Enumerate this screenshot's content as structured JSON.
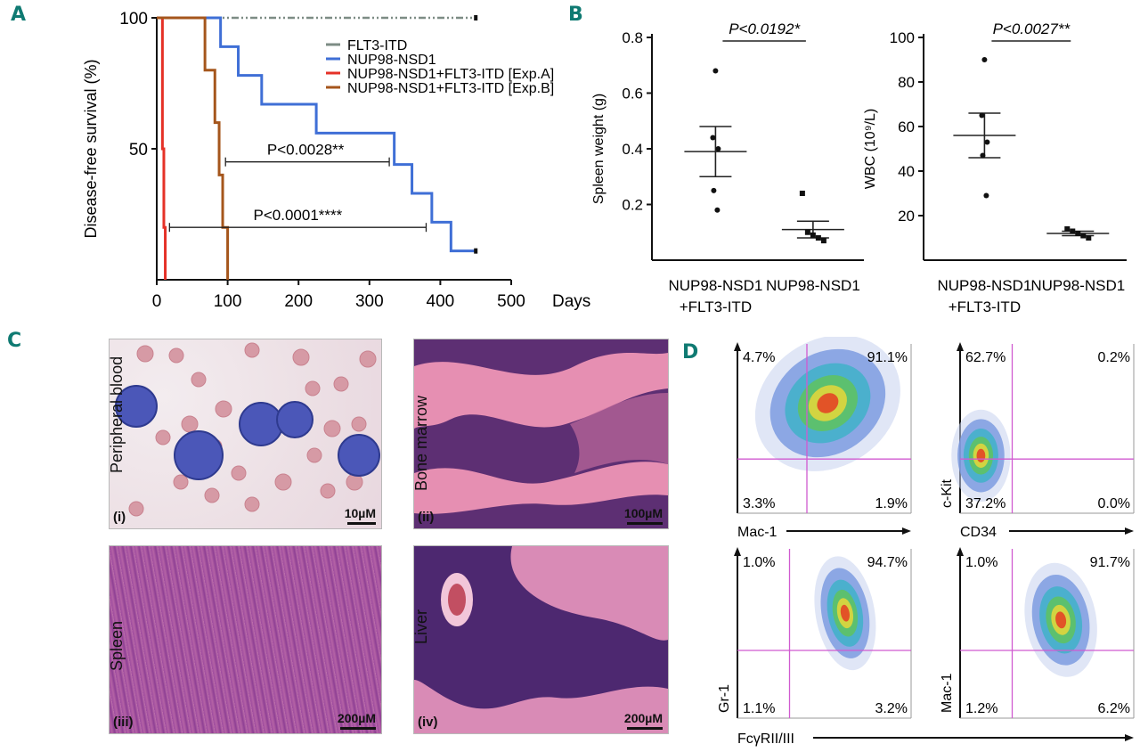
{
  "panels": {
    "a": {
      "letter": "A"
    },
    "b": {
      "letter": "B"
    },
    "c": {
      "letter": "C"
    },
    "d": {
      "letter": "D"
    }
  },
  "colors": {
    "panel_letter": "#0f7a72",
    "flt3": "#7d8c85",
    "nup98": "#3f6fd6",
    "expA": "#e53127",
    "expB": "#a5561c",
    "gate": "#d05ad0"
  },
  "chart_data": [
    {
      "type": "line",
      "panel": "A",
      "ylabel": "Disease-free survival (%)",
      "xlabel": "Days",
      "xlim": [
        0,
        500
      ],
      "ylim": [
        0,
        100
      ],
      "xticks": [
        0,
        100,
        200,
        300,
        400,
        500
      ],
      "yticks": [
        50,
        100
      ],
      "series": [
        {
          "name": "FLT3-ITD",
          "x": [
            0,
            450
          ],
          "y": [
            100,
            100
          ]
        },
        {
          "name": "NUP98-NSD1",
          "x": [
            0,
            90,
            90,
            115,
            115,
            148,
            148,
            225,
            225,
            335,
            335,
            360,
            360,
            388,
            388,
            415,
            415,
            450
          ],
          "y": [
            100,
            100,
            89,
            89,
            78,
            78,
            67,
            67,
            56,
            56,
            44,
            44,
            33,
            33,
            22,
            22,
            11,
            11
          ]
        },
        {
          "name": "NUP98-NSD1+FLT3-ITD [Exp.A]",
          "x": [
            0,
            8,
            8,
            10,
            10,
            12,
            12
          ],
          "y": [
            100,
            100,
            50,
            50,
            20,
            20,
            0
          ]
        },
        {
          "name": "NUP98-NSD1+FLT3-ITD [Exp.B]",
          "x": [
            0,
            68,
            68,
            82,
            82,
            88,
            88,
            93,
            93,
            100,
            100
          ],
          "y": [
            100,
            100,
            80,
            80,
            60,
            60,
            40,
            40,
            20,
            20,
            0
          ]
        }
      ],
      "annotations": [
        {
          "text": "P<0.0028**",
          "x1": 97,
          "x2": 328,
          "y": 45
        },
        {
          "text": "P<0.0001****",
          "x1": 18,
          "x2": 380,
          "y": 20
        }
      ],
      "legend_position": "top-right"
    },
    {
      "type": "scatter",
      "panel": "B-left",
      "ylabel": "Spleen weight (g)",
      "ylim": [
        0,
        0.8
      ],
      "yticks": [
        0.2,
        0.4,
        0.6,
        0.8
      ],
      "categories": [
        "NUP98-NSD1 +FLT3-ITD",
        "NUP98-NSD1"
      ],
      "category_lines": [
        [
          "NUP98-NSD1",
          "+FLT3-ITD"
        ],
        [
          "NUP98-NSD1",
          ""
        ]
      ],
      "groups": [
        {
          "points": [
            0.68,
            0.44,
            0.4,
            0.25,
            0.18
          ],
          "mean": 0.39,
          "sem_low": 0.3,
          "sem_high": 0.48
        },
        {
          "points": [
            0.24,
            0.1,
            0.09,
            0.08,
            0.07
          ],
          "mean": 0.11,
          "sem_low": 0.08,
          "sem_high": 0.14
        }
      ],
      "pvalue": "P<0.0192*"
    },
    {
      "type": "scatter",
      "panel": "B-right",
      "ylabel": "WBC (10⁹/L)",
      "ylim": [
        0,
        100
      ],
      "yticks": [
        20,
        40,
        60,
        80,
        100
      ],
      "categories": [
        "NUP98-NSD1 +FLT3-ITD",
        "NUP98-NSD1"
      ],
      "category_lines": [
        [
          "NUP98-NSD1",
          "+FLT3-ITD"
        ],
        [
          "NUP98-NSD1",
          ""
        ]
      ],
      "groups": [
        {
          "points": [
            90,
            65,
            53,
            47,
            29
          ],
          "mean": 56,
          "sem_low": 46,
          "sem_high": 66
        },
        {
          "points": [
            14,
            13,
            12,
            11,
            10
          ],
          "mean": 12,
          "sem_low": 11,
          "sem_high": 13
        }
      ],
      "pvalue": "P<0.0027**"
    }
  ],
  "micrographs": [
    {
      "roman": "(i)",
      "side_label": "Peripheral blood",
      "scale": "10µM"
    },
    {
      "roman": "(ii)",
      "side_label": "Bone marrow",
      "scale": "100µM"
    },
    {
      "roman": "(iii)",
      "side_label": "Spleen",
      "scale": "200µM"
    },
    {
      "roman": "(iv)",
      "side_label": "Liver",
      "scale": "200µM"
    }
  ],
  "flow_plots": [
    {
      "quadrants": [
        "4.7%",
        "91.1%",
        "3.3%",
        "1.9%"
      ],
      "xlabel": "Mac-1",
      "ylabel": ""
    },
    {
      "quadrants": [
        "62.7%",
        "0.2%",
        "37.2%",
        "0.0%"
      ],
      "xlabel": "CD34",
      "ylabel": "c-Kit"
    },
    {
      "quadrants": [
        "1.0%",
        "94.7%",
        "1.1%",
        "3.2%"
      ],
      "xlabel": "",
      "ylabel": "Gr-1"
    },
    {
      "quadrants": [
        "1.0%",
        "91.7%",
        "1.2%",
        "6.2%"
      ],
      "xlabel": "",
      "ylabel": "Mac-1"
    }
  ],
  "flow_shared_xlabel": "FcγRII/III"
}
